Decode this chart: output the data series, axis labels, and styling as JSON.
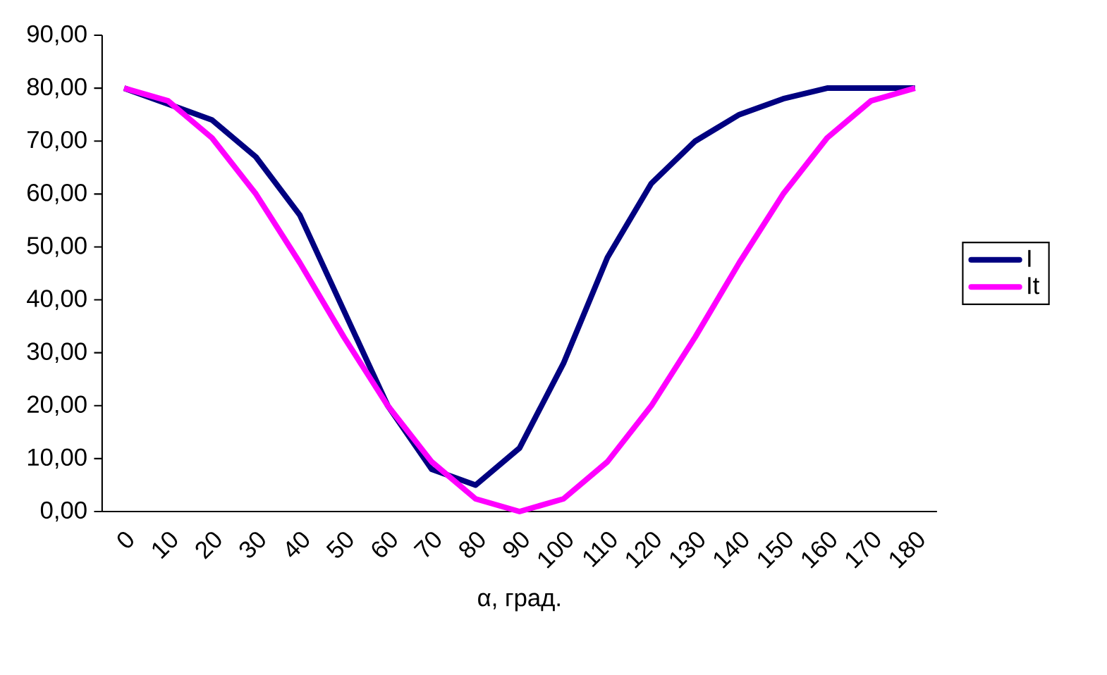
{
  "chart_data": {
    "type": "line",
    "xlabel": "α, град.",
    "categories": [
      "0",
      "10",
      "20",
      "30",
      "40",
      "50",
      "60",
      "70",
      "80",
      "90",
      "100",
      "110",
      "120",
      "130",
      "140",
      "150",
      "160",
      "170",
      "180"
    ],
    "series": [
      {
        "name": "I",
        "color": "#000080",
        "values": [
          80,
          77,
          74,
          67,
          56,
          38,
          20,
          8,
          5,
          12,
          28,
          48,
          62,
          70,
          75,
          78,
          80,
          80,
          80
        ]
      },
      {
        "name": "It",
        "color": "#ff00ff",
        "values": [
          80,
          77.6,
          70.6,
          60,
          47,
          33,
          20,
          9.4,
          2.4,
          0,
          2.4,
          9.4,
          20,
          33,
          47,
          60,
          70.6,
          77.6,
          80
        ]
      }
    ],
    "ylim": [
      0,
      90
    ],
    "yticks": [
      {
        "value": 0,
        "label": "0,00"
      },
      {
        "value": 10,
        "label": "10,00"
      },
      {
        "value": 20,
        "label": "20,00"
      },
      {
        "value": 30,
        "label": "30,00"
      },
      {
        "value": 40,
        "label": "40,00"
      },
      {
        "value": 50,
        "label": "50,00"
      },
      {
        "value": 60,
        "label": "60,00"
      },
      {
        "value": 70,
        "label": "70,00"
      },
      {
        "value": 80,
        "label": "80,00"
      },
      {
        "value": 90,
        "label": "90,00"
      }
    ],
    "grid": false,
    "legend": "right",
    "marker": "none",
    "line_style": "solid"
  }
}
